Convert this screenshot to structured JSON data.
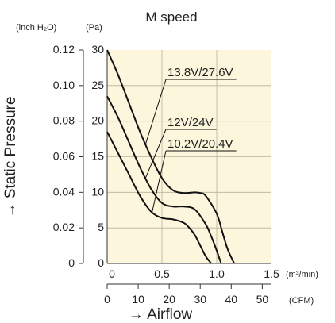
{
  "chart_data": {
    "type": "line",
    "title": "M speed",
    "ylabel": "→ Static Pressure",
    "xlabel": "→ Airflow",
    "y_units_left": "(inch H₂O)",
    "y_units_right": "(Pa)",
    "x_units_primary": "(m³/min)",
    "x_units_secondary": "(CFM)",
    "x_primary_lim": [
      0,
      1.5
    ],
    "y_primary_lim": [
      0,
      30
    ],
    "x_primary_ticks": [
      "0",
      "0.5",
      "1.0",
      "1.5"
    ],
    "x_primary_tick_values": [
      0,
      0.5,
      1.0,
      1.5
    ],
    "y_primary_ticks": [
      "0",
      "5",
      "10",
      "15",
      "20",
      "25",
      "30"
    ],
    "y_primary_tick_values": [
      0,
      5,
      10,
      15,
      20,
      25,
      30
    ],
    "y_secondary_ticks": [
      "0",
      "0.02",
      "0.04",
      "0.06",
      "0.08",
      "0.10",
      "0.12"
    ],
    "x_secondary_ticks": [
      "0",
      "10",
      "20",
      "30",
      "40",
      "50"
    ],
    "x_secondary_tick_values": [
      0,
      10,
      20,
      30,
      40,
      50
    ],
    "grid": true,
    "series": [
      {
        "name": "13.8V/27.6V",
        "x": [
          0,
          0.1,
          0.2,
          0.3,
          0.4,
          0.5,
          0.6,
          0.7,
          0.8,
          0.85,
          0.9,
          1.0,
          1.05,
          1.1,
          1.16
        ],
        "y": [
          30,
          26.5,
          22.5,
          18.5,
          15,
          12,
          10.3,
          9.9,
          10,
          9.9,
          9.5,
          7,
          4.5,
          2,
          0
        ]
      },
      {
        "name": "12V/24V",
        "x": [
          0,
          0.1,
          0.2,
          0.3,
          0.4,
          0.5,
          0.6,
          0.7,
          0.8,
          0.9,
          0.95,
          1.0,
          1.04
        ],
        "y": [
          23.5,
          20.5,
          17,
          13.5,
          10.5,
          8.5,
          8,
          8,
          7.6,
          5.5,
          3.8,
          1.8,
          0
        ]
      },
      {
        "name": "10.2V/20.4V",
        "x": [
          0,
          0.1,
          0.2,
          0.3,
          0.4,
          0.5,
          0.6,
          0.7,
          0.75,
          0.8,
          0.85,
          0.9,
          0.95
        ],
        "y": [
          18.5,
          15.5,
          12.5,
          9.5,
          7.3,
          6.4,
          6.2,
          5.7,
          5,
          4,
          2.5,
          1,
          0
        ]
      }
    ]
  }
}
